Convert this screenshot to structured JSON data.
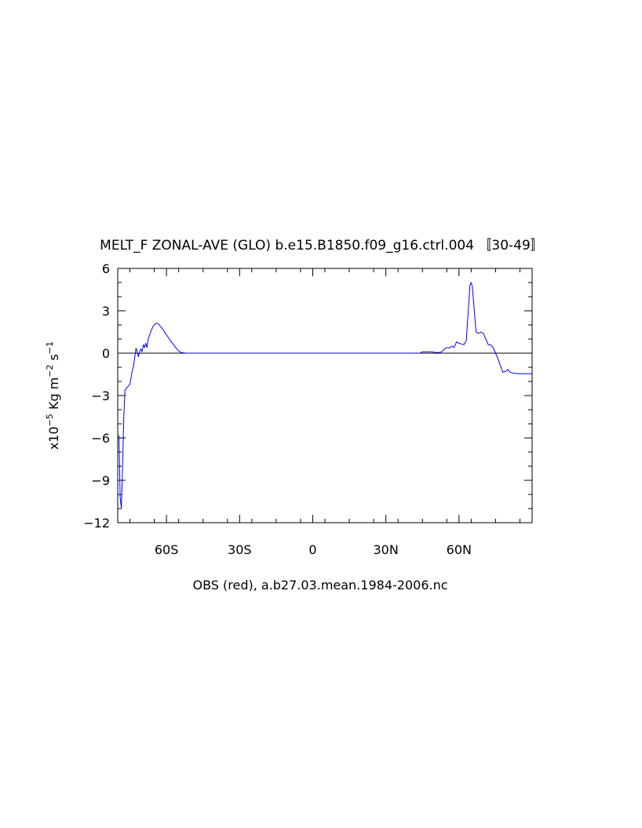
{
  "chart_data": {
    "type": "line",
    "title": "MELT_F ZONAL-AVE (GLO) b.e15.B1850.f09_g16.ctrl.004 〚30-49〛",
    "xlabel": "OBS (red), a.b27.03.mean.1984-2006.nc",
    "ylabel": {
      "prefix": "x10",
      "exp": "−5",
      "unit1": " Kg m",
      "exp2": "−2",
      "unit2": " s",
      "exp3": "−1"
    },
    "xlim": [
      -80,
      90
    ],
    "ylim": [
      -12,
      6
    ],
    "x_ticks": [
      {
        "value": -60,
        "label": "60S"
      },
      {
        "value": -30,
        "label": "30S"
      },
      {
        "value": 0,
        "label": "0"
      },
      {
        "value": 30,
        "label": "30N"
      },
      {
        "value": 60,
        "label": "60N"
      }
    ],
    "y_ticks": [
      {
        "value": 6,
        "label": "6"
      },
      {
        "value": 3,
        "label": "3"
      },
      {
        "value": 0,
        "label": "0"
      },
      {
        "value": -3,
        "label": "−3"
      },
      {
        "value": -6,
        "label": "−6"
      },
      {
        "value": -9,
        "label": "−9"
      },
      {
        "value": -12,
        "label": "−12"
      }
    ],
    "zero_line": true,
    "series": [
      {
        "color": "#0000ff",
        "x": [
          -79.5,
          -79,
          -78.5,
          -78,
          -77.5,
          -77,
          -76,
          -75,
          -74,
          -73.5,
          -72.5,
          -72,
          -71.5,
          -71,
          -70.5,
          -70,
          -69.5,
          -69,
          -68.5,
          -68,
          -67.5,
          -66.5,
          -65.5,
          -64.5,
          -63.5,
          -62,
          -60,
          -58,
          -56,
          -55,
          -54,
          -52,
          -50,
          -30,
          0,
          30,
          44,
          45,
          47,
          49,
          50,
          52,
          53,
          54,
          55,
          56,
          57,
          58,
          59,
          60,
          61,
          62,
          63,
          64,
          64.5,
          65,
          65.5,
          66,
          67,
          68,
          69,
          70,
          71,
          72,
          73,
          74,
          75,
          76,
          77,
          78,
          79,
          80,
          81,
          82,
          84,
          86,
          88,
          90
        ],
        "y": [
          -5.8,
          -10.2,
          -11,
          -8,
          -4.5,
          -2.6,
          -2.4,
          -2.2,
          -1.2,
          -0.9,
          0.35,
          0.1,
          -0.25,
          0.1,
          0.3,
          0.1,
          0.6,
          0.4,
          0.7,
          0.4,
          1.0,
          1.5,
          1.9,
          2.1,
          2.1,
          1.8,
          1.3,
          0.8,
          0.35,
          0.15,
          0.05,
          0.0,
          0.0,
          0.0,
          0.0,
          0.0,
          0.0,
          0.1,
          0.1,
          0.1,
          0.05,
          0.05,
          0.1,
          0.3,
          0.4,
          0.35,
          0.5,
          0.4,
          0.8,
          0.7,
          0.65,
          0.6,
          0.9,
          3.5,
          4.8,
          5.0,
          4.7,
          3.6,
          1.5,
          1.4,
          1.5,
          1.4,
          1.0,
          0.6,
          0.6,
          0.4,
          0.0,
          -0.4,
          -0.9,
          -1.35,
          -1.3,
          -1.15,
          -1.35,
          -1.4,
          -1.45,
          -1.45,
          -1.45,
          -1.45
        ]
      }
    ]
  }
}
